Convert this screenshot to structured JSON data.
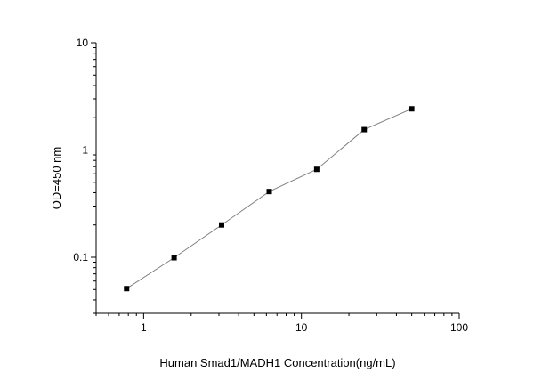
{
  "chart_data": {
    "type": "line",
    "title": "",
    "xlabel": "Human Smad1/MADH1 Concentration(ng/mL)",
    "ylabel": "OD=450 nm",
    "x_scale": "log",
    "y_scale": "log",
    "xlim": [
      0.5,
      100
    ],
    "ylim": [
      0.03,
      10
    ],
    "x_ticks": [
      {
        "value": 1,
        "label": "1"
      },
      {
        "value": 10,
        "label": "10"
      },
      {
        "value": 100,
        "label": "100"
      }
    ],
    "y_ticks": [
      {
        "value": 0.1,
        "label": "0.1"
      },
      {
        "value": 1,
        "label": "1"
      },
      {
        "value": 10,
        "label": "10"
      }
    ],
    "grid": false,
    "legend": "none",
    "series": [
      {
        "x": [
          0.78,
          1.56,
          3.12,
          6.25,
          12.5,
          25,
          50
        ],
        "y": [
          0.051,
          0.099,
          0.2,
          0.41,
          0.66,
          1.55,
          2.42
        ],
        "marker": "square",
        "color": "#000000",
        "line_color": "#808080"
      }
    ]
  }
}
